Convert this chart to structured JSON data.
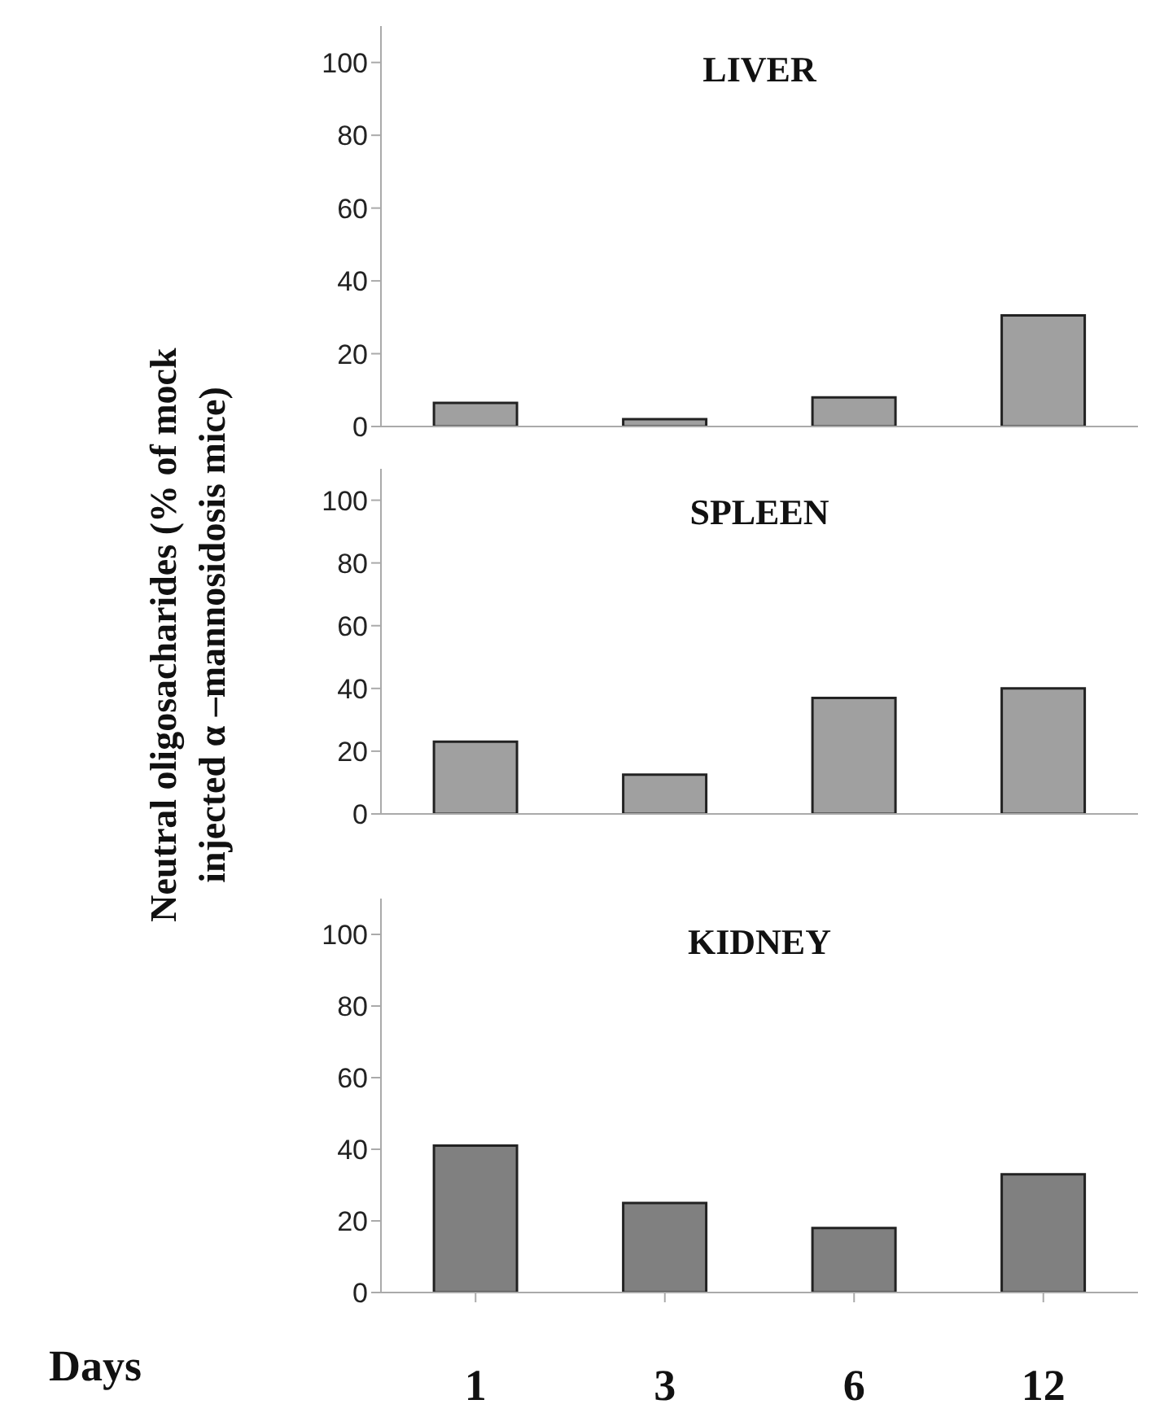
{
  "chart_data": [
    {
      "type": "bar",
      "title": "LIVER",
      "categories": [
        "1",
        "3",
        "6",
        "12"
      ],
      "values": [
        6.5,
        2,
        8,
        30.5
      ],
      "color": "#a0a0a0",
      "ylim": [
        0,
        110
      ],
      "yticks": [
        0,
        20,
        40,
        60,
        80,
        100
      ],
      "tick_labels": "y"
    },
    {
      "type": "bar",
      "title": "SPLEEN",
      "ylabel": "Neutral oligosacharides (% of mock injected α –mannosidosis mice)",
      "categories": [
        "1",
        "3",
        "6",
        "12"
      ],
      "values": [
        23,
        12.5,
        37,
        40
      ],
      "color": "#a0a0a0",
      "ylim": [
        0,
        110
      ],
      "yticks": [
        0,
        20,
        40,
        60,
        80,
        100
      ],
      "tick_labels": "y"
    },
    {
      "type": "bar",
      "title": "KIDNEY",
      "xlabel": "Days",
      "categories": [
        "1",
        "3",
        "6",
        "12"
      ],
      "values": [
        41,
        25,
        18,
        33
      ],
      "color": "#808080",
      "ylim": [
        0,
        110
      ],
      "yticks": [
        0,
        20,
        40,
        60,
        80,
        100
      ]
    }
  ]
}
